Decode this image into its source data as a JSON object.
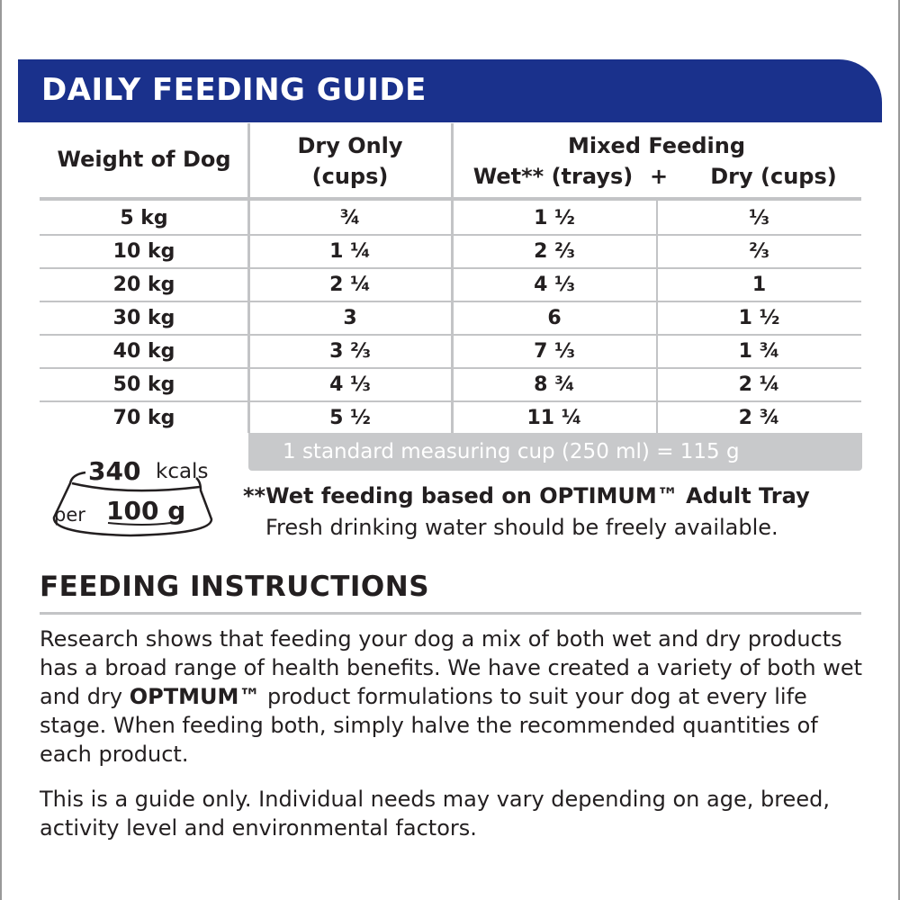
{
  "header": {
    "title": "DAILY FEEDING GUIDE",
    "color": "#1a318c"
  },
  "table": {
    "headers": {
      "weight": "Weight of Dog",
      "dry_only_1": "Dry Only",
      "dry_only_2": "(cups)",
      "mixed": "Mixed Feeding",
      "wet": "Wet** (trays)",
      "plus": "+",
      "dry": "Dry (cups)"
    },
    "rows": [
      [
        "5 kg",
        "¾",
        "1 ½",
        "⅓"
      ],
      [
        "10 kg",
        "1 ¼",
        "2 ⅔",
        "⅔"
      ],
      [
        "20 kg",
        "2 ¼",
        "4 ⅓",
        "1"
      ],
      [
        "30 kg",
        "3",
        "6",
        "1 ½"
      ],
      [
        "40 kg",
        "3 ⅔",
        "7 ⅓",
        "1 ¾"
      ],
      [
        "50 kg",
        "4 ⅓",
        "8 ¾",
        "2 ¼"
      ],
      [
        "70 kg",
        "5 ½",
        "11 ¼",
        "2 ¾"
      ]
    ],
    "footer": "1 standard measuring cup (250 ml) = 115 g"
  },
  "badge": {
    "kcal_value": "340",
    "kcal_unit": "kcals",
    "per": "per",
    "amount": "100 g"
  },
  "notes": {
    "wet": "**Wet feeding based on OPTIMUM™ Adult Tray",
    "water": "Fresh drinking water should be freely available."
  },
  "instructions": {
    "title": "FEEDING INSTRUCTIONS",
    "p1_a": "Research shows that feeding your dog a mix of both wet and dry products has a broad range of health benefits.  We have created a variety of both wet and dry ",
    "p1_brand": "OPTMUM™",
    "p1_b": " product formulations to suit your dog at every life stage.  When feeding both, simply halve the recommended quantities of each product.",
    "p2": "This is a guide only.  Individual needs may vary depending on age, breed, activity level and environmental factors."
  }
}
